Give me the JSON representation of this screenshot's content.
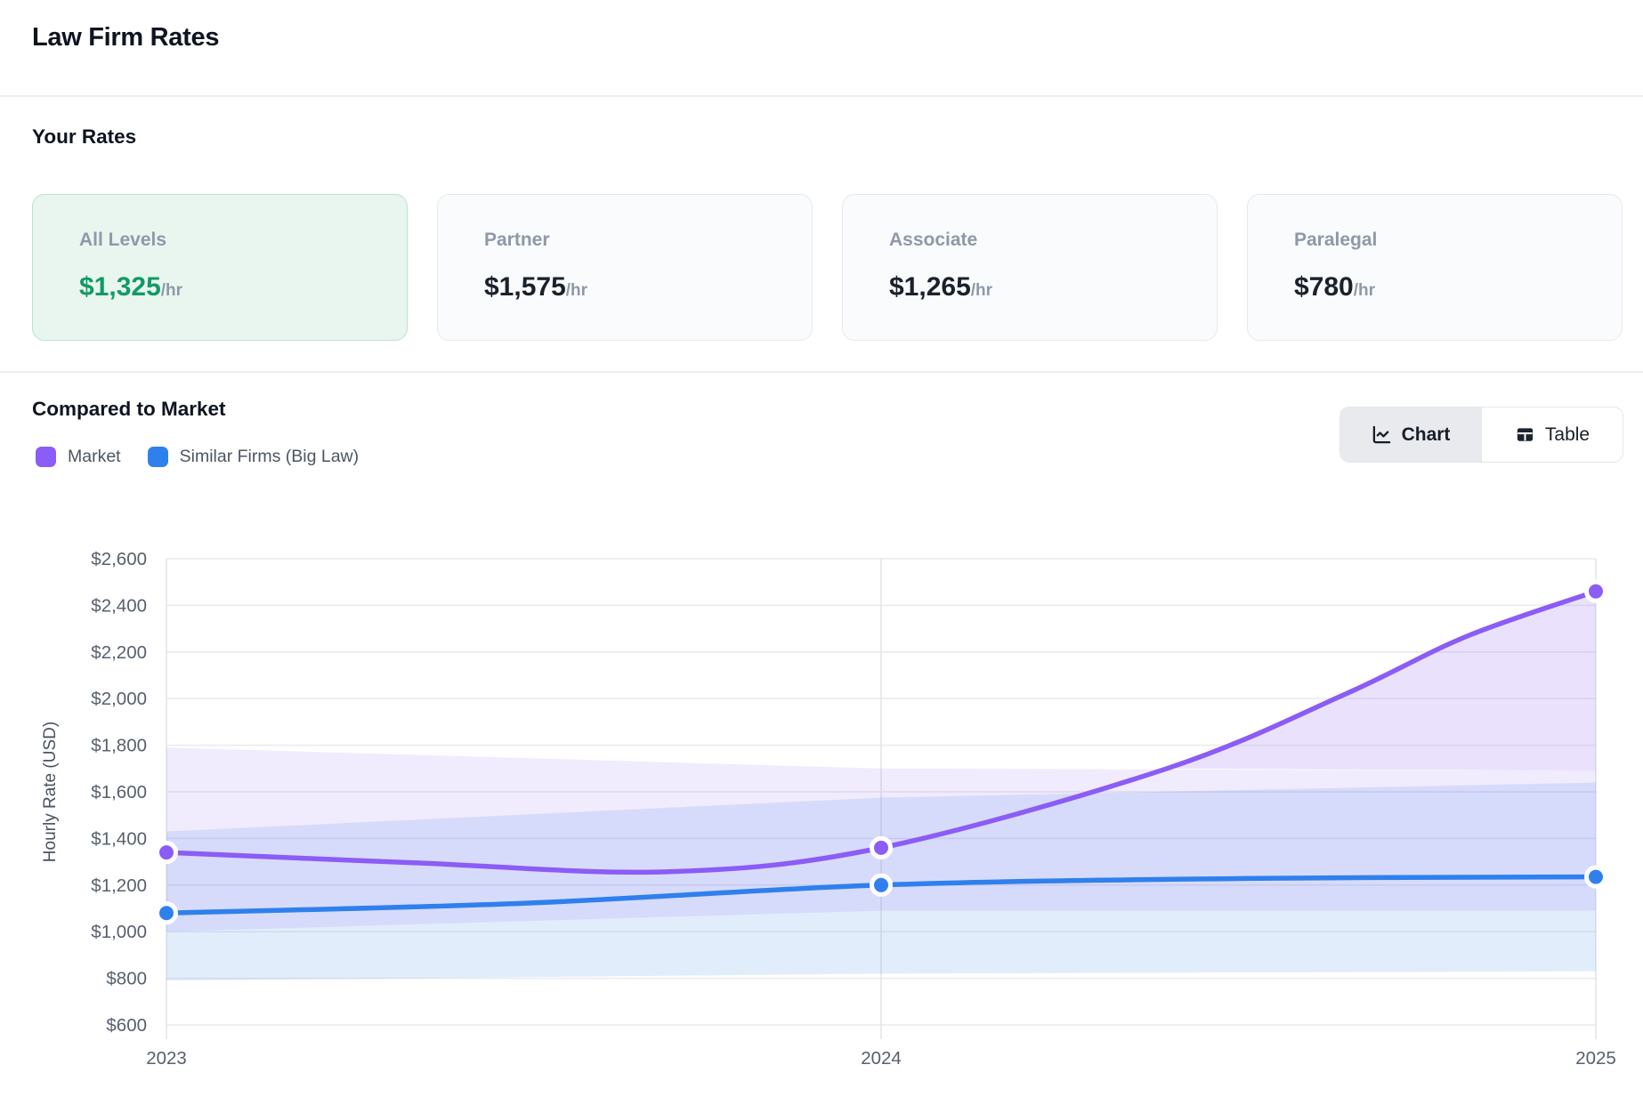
{
  "header": {
    "title": "Law Firm Rates"
  },
  "your_rates": {
    "heading": "Your Rates",
    "cards": [
      {
        "label": "All Levels",
        "value": "$1,325",
        "suffix": "/hr",
        "highlighted": true,
        "value_color": "#119a64"
      },
      {
        "label": "Partner",
        "value": "$1,575",
        "suffix": "/hr",
        "highlighted": false,
        "value_color": "#1a212d"
      },
      {
        "label": "Associate",
        "value": "$1,265",
        "suffix": "/hr",
        "highlighted": false,
        "value_color": "#1a212d"
      },
      {
        "label": "Paralegal",
        "value": "$780",
        "suffix": "/hr",
        "highlighted": false,
        "value_color": "#1a212d"
      }
    ]
  },
  "market": {
    "heading": "Compared to Market",
    "legend": [
      {
        "label": "Market",
        "color": "#8b5cf6"
      },
      {
        "label": "Similar Firms (Big Law)",
        "color": "#2f80ed"
      }
    ],
    "toggle": {
      "chart_label": "Chart",
      "table_label": "Table",
      "active": "Chart"
    }
  },
  "chart_data": {
    "type": "line",
    "x": [
      2023,
      2024,
      2025
    ],
    "xlim": [
      2023,
      2025
    ],
    "ylim": [
      600,
      2600
    ],
    "yticks": [
      600,
      800,
      1000,
      1200,
      1400,
      1600,
      1800,
      2000,
      2200,
      2400,
      2600
    ],
    "ylabel": "Hourly Rate (USD)",
    "grid": true,
    "legend_position": "top-left",
    "series": [
      {
        "name": "Market",
        "color": "#8b5cf6",
        "values": [
          1340,
          1360,
          2460
        ],
        "smooth_samples": [
          [
            2023,
            1340
          ],
          [
            2023.35,
            1295
          ],
          [
            2023.7,
            1257
          ],
          [
            2024,
            1360
          ],
          [
            2024.4,
            1700
          ],
          [
            2024.65,
            2020
          ],
          [
            2024.82,
            2268
          ],
          [
            2025,
            2460
          ]
        ],
        "band": {
          "top": [
            [
              2023,
              1790
            ],
            [
              2024,
              1700
            ],
            [
              2025,
              1690
            ]
          ],
          "bottom": [
            [
              2023,
              1000
            ],
            [
              2024,
              1090
            ],
            [
              2025,
              1090
            ]
          ]
        }
      },
      {
        "name": "Similar Firms (Big Law)",
        "color": "#2f80ed",
        "values": [
          1080,
          1200,
          1235
        ],
        "smooth_samples": [
          [
            2023,
            1080
          ],
          [
            2023.5,
            1122
          ],
          [
            2024,
            1200
          ],
          [
            2024.5,
            1228
          ],
          [
            2025,
            1235
          ]
        ],
        "band": {
          "top": [
            [
              2023,
              1430
            ],
            [
              2024,
              1575
            ],
            [
              2025,
              1640
            ]
          ],
          "bottom": [
            [
              2023,
              790
            ],
            [
              2024,
              820
            ],
            [
              2025,
              830
            ]
          ]
        }
      }
    ]
  }
}
